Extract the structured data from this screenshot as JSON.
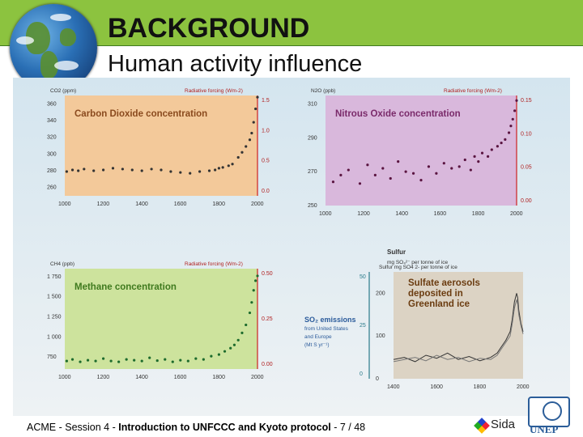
{
  "slide": {
    "title": "BACKGROUND",
    "subtitle": "Human activity influence",
    "footer": {
      "course": "ACME",
      "sep1": " - ",
      "session": "Session 4",
      "sep2": " - ",
      "topic": "Introduction to UNFCCC and Kyoto protocol",
      "page": " - 7 / 48"
    },
    "logos": {
      "sida": "Sida",
      "unep": "UNEP"
    }
  },
  "colors": {
    "header": "#8cc33f",
    "co2_bg": "#f3c99a",
    "n2o_bg": "#d9b8dc",
    "ch4_bg": "#cde39d",
    "sulfur_bg": "#dcd3c4",
    "axis_red": "#cc2222"
  },
  "chart_data": [
    {
      "type": "scatter",
      "title": "Carbon Dioxide concentration",
      "ylabel": "CO2 (ppm)",
      "y2label": "Radiative forcing (Wm-2)",
      "x_ticks": [
        "1000",
        "1200",
        "1400",
        "1600",
        "1800",
        "2000"
      ],
      "y_ticks": [
        "360",
        "340",
        "320",
        "300",
        "280",
        "260"
      ],
      "y2_ticks": [
        "1.5",
        "1.0",
        "0.5",
        "0.0"
      ],
      "xlim": [
        1000,
        2000
      ],
      "ylim": [
        250,
        370
      ],
      "x": [
        1010,
        1040,
        1070,
        1100,
        1150,
        1200,
        1250,
        1300,
        1350,
        1400,
        1450,
        1500,
        1550,
        1600,
        1650,
        1700,
        1750,
        1780,
        1800,
        1820,
        1850,
        1870,
        1900,
        1920,
        1940,
        1960,
        1970,
        1980,
        1990,
        2000
      ],
      "y": [
        279,
        281,
        280,
        282,
        280,
        281,
        283,
        282,
        281,
        280,
        282,
        281,
        279,
        278,
        277,
        279,
        280,
        281,
        283,
        284,
        286,
        288,
        296,
        302,
        309,
        317,
        325,
        338,
        354,
        368
      ]
    },
    {
      "type": "scatter",
      "title": "Nitrous Oxide concentration",
      "ylabel": "N2O (ppb)",
      "y2label": "Radiative forcing (Wm-2)",
      "x_ticks": [
        "1000",
        "1200",
        "1400",
        "1600",
        "1800",
        "2000"
      ],
      "y_ticks": [
        "310",
        "290",
        "270",
        "250"
      ],
      "y2_ticks": [
        "0.15",
        "0.10",
        "0.05",
        "0.00"
      ],
      "xlim": [
        1000,
        2000
      ],
      "ylim": [
        250,
        315
      ],
      "x": [
        1040,
        1080,
        1120,
        1180,
        1220,
        1260,
        1300,
        1340,
        1380,
        1420,
        1460,
        1500,
        1540,
        1580,
        1620,
        1660,
        1700,
        1730,
        1760,
        1780,
        1800,
        1820,
        1850,
        1870,
        1900,
        1920,
        1940,
        1960,
        1970,
        1980,
        1990,
        2000
      ],
      "y": [
        264,
        268,
        271,
        263,
        274,
        268,
        272,
        266,
        276,
        270,
        269,
        265,
        273,
        269,
        275,
        272,
        273,
        277,
        271,
        279,
        276,
        281,
        279,
        283,
        285,
        287,
        289,
        293,
        297,
        301,
        306,
        312
      ]
    },
    {
      "type": "scatter",
      "title": "Methane concentration",
      "ylabel": "CH4 (ppb)",
      "y2label": "Radiative forcing (Wm-2)",
      "x_ticks": [
        "1000",
        "1200",
        "1400",
        "1600",
        "1800",
        "2000"
      ],
      "y_ticks": [
        "1750",
        "1500",
        "1250",
        "1000",
        "750"
      ],
      "y2_ticks": [
        "0.50",
        "0.25",
        "0.00"
      ],
      "xlim": [
        1000,
        2000
      ],
      "ylim": [
        600,
        1850
      ],
      "x": [
        1010,
        1040,
        1080,
        1120,
        1160,
        1200,
        1240,
        1280,
        1320,
        1360,
        1400,
        1440,
        1480,
        1520,
        1560,
        1600,
        1640,
        1680,
        1720,
        1760,
        1800,
        1830,
        1860,
        1880,
        1900,
        1920,
        1940,
        1960,
        1970,
        1980,
        1990,
        2000
      ],
      "y": [
        700,
        720,
        690,
        710,
        700,
        730,
        700,
        690,
        720,
        710,
        700,
        740,
        705,
        720,
        690,
        710,
        700,
        730,
        720,
        760,
        780,
        820,
        860,
        900,
        960,
        1050,
        1150,
        1300,
        1430,
        1580,
        1700,
        1760
      ]
    },
    {
      "type": "line",
      "title": "Sulfate aerosols deposited in Greenland ice",
      "ylabel": "Sulfur mg SO4 2- per tonne of ice",
      "y2label": "SO2 emissions from United States and Europe (Mt S yr-1)",
      "x_ticks": [
        "1400",
        "1600",
        "1800",
        "2000"
      ],
      "y_ticks": [
        "200",
        "100",
        "0"
      ],
      "y2_ticks": [
        "50",
        "25",
        "0"
      ],
      "xlim": [
        1400,
        2000
      ],
      "ylim": [
        0,
        250
      ],
      "series": [
        {
          "x": [
            1400,
            1450,
            1500,
            1550,
            1600,
            1650,
            1700,
            1750,
            1800,
            1850,
            1880,
            1900,
            1920,
            1940,
            1950,
            1960,
            1970,
            1975,
            1980,
            1990,
            2000
          ],
          "y": [
            45,
            50,
            40,
            55,
            48,
            60,
            45,
            52,
            42,
            50,
            60,
            75,
            90,
            110,
            140,
            180,
            200,
            190,
            160,
            130,
            110
          ]
        },
        {
          "x": [
            1400,
            1450,
            1500,
            1550,
            1600,
            1650,
            1700,
            1750,
            1800,
            1850,
            1880,
            1900,
            1920,
            1940,
            1950,
            1960,
            1970,
            1975,
            1980,
            1990,
            2000
          ],
          "y": [
            40,
            45,
            50,
            42,
            55,
            45,
            50,
            40,
            48,
            45,
            55,
            70,
            85,
            100,
            130,
            165,
            185,
            175,
            150,
            125,
            105
          ]
        }
      ]
    }
  ]
}
